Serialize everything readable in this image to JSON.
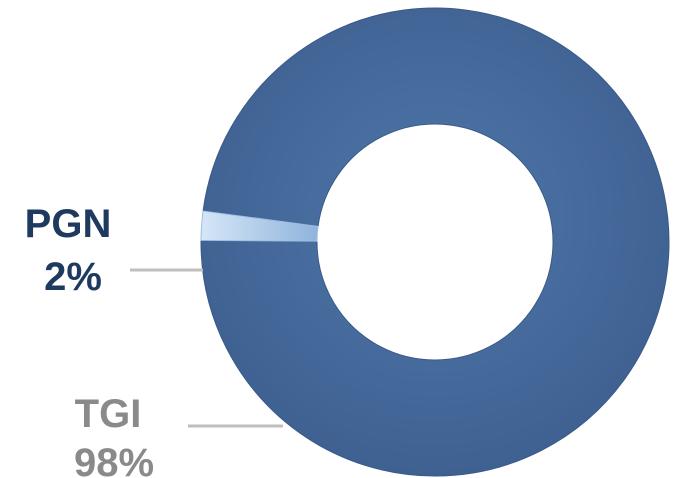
{
  "chart_data": {
    "type": "pie",
    "variant": "donut",
    "title": "",
    "categories": [
      "TGI",
      "PGN"
    ],
    "values": [
      98,
      2
    ],
    "value_labels": [
      "98%",
      "2%"
    ],
    "colors": {
      "TGI": "#44689a",
      "PGN": "#b3d1ef",
      "TGI_label": "#8a8a8a",
      "PGN_label": "#1f3a5f",
      "leader_line": "#bfbfbf"
    },
    "legend": "none"
  }
}
